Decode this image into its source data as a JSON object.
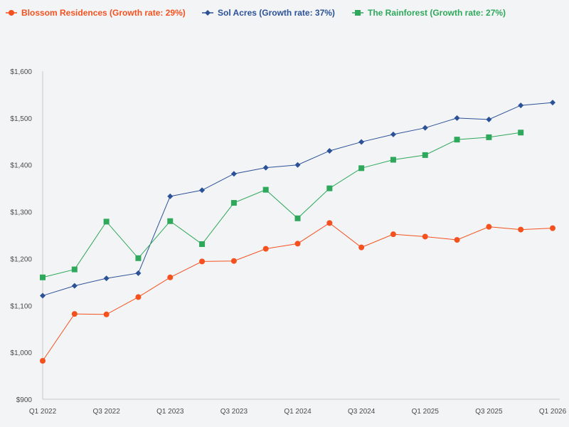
{
  "chart_data": {
    "type": "line",
    "title": "",
    "xlabel": "",
    "ylabel": "",
    "ylim": [
      900,
      1600
    ],
    "y_ticks": [
      900,
      1000,
      1100,
      1200,
      1300,
      1400,
      1500,
      1600
    ],
    "y_tick_labels": [
      "$900",
      "$1,000",
      "$1,100",
      "$1,200",
      "$1,300",
      "$1,400",
      "$1,500",
      "$1,600"
    ],
    "x_ticks": [
      0,
      2,
      4,
      6,
      8,
      10,
      12,
      14,
      16
    ],
    "x_tick_labels": [
      "Q1 2022",
      "Q3 2022",
      "Q1 2023",
      "Q3 2023",
      "Q1 2024",
      "Q3 2024",
      "Q1 2025",
      "Q3 2025",
      "Q1 2026"
    ],
    "categories": [
      "Q1 2022",
      "Q2 2022",
      "Q3 2022",
      "Q4 2022",
      "Q1 2023",
      "Q2 2023",
      "Q3 2023",
      "Q4 2023",
      "Q1 2024",
      "Q2 2024",
      "Q3 2024",
      "Q4 2024",
      "Q1 2025",
      "Q2 2025",
      "Q3 2025",
      "Q4 2025",
      "Q1 2026"
    ],
    "legend_position": "top-left",
    "series": [
      {
        "name": "Blossom Residences (Growth rate: 29%)",
        "color": "#f4511e",
        "marker": "circle",
        "values": [
          982,
          1082,
          1081,
          1118,
          1160,
          1194,
          1195,
          1221,
          1232,
          1276,
          1224,
          1252,
          1247,
          1240,
          1268,
          1262,
          1265
        ]
      },
      {
        "name": "Sol Acres (Growth rate: 37%)",
        "color": "#2b5197",
        "marker": "diamond",
        "values": [
          1121,
          1142,
          1158,
          1169,
          1333,
          1346,
          1381,
          1394,
          1400,
          1430,
          1449,
          1465,
          1479,
          1500,
          1497,
          1527,
          1533
        ]
      },
      {
        "name": "The Rainforest (Growth rate: 27%)",
        "color": "#2ea85a",
        "marker": "square",
        "values": [
          1160,
          1177,
          1279,
          1201,
          1280,
          1231,
          1319,
          1347,
          1286,
          1350,
          1393,
          1411,
          1421,
          1454,
          1459,
          1469,
          null
        ]
      }
    ]
  }
}
